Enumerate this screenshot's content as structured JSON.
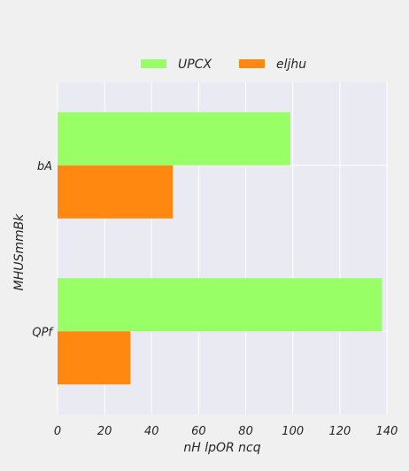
{
  "chart_data": {
    "type": "bar",
    "orientation": "horizontal",
    "categories": [
      "bA",
      "QPf"
    ],
    "series": [
      {
        "name": "UPCX",
        "values": [
          99,
          138
        ],
        "color": "#99ff66"
      },
      {
        "name": "eljhu",
        "values": [
          49,
          31
        ],
        "color": "#ff8811"
      }
    ],
    "xlabel": "nH lpOR ncq",
    "ylabel": "MHUSmmBk",
    "xlim": [
      0,
      140
    ],
    "xticks": [
      "0",
      "20",
      "40",
      "60",
      "80",
      "100",
      "120",
      "140"
    ],
    "grid": true,
    "legend_position": "top-center",
    "plot_background": "#eaeaf2",
    "figure_background": "#f0f0f0",
    "grid_color": "#ffffff"
  }
}
